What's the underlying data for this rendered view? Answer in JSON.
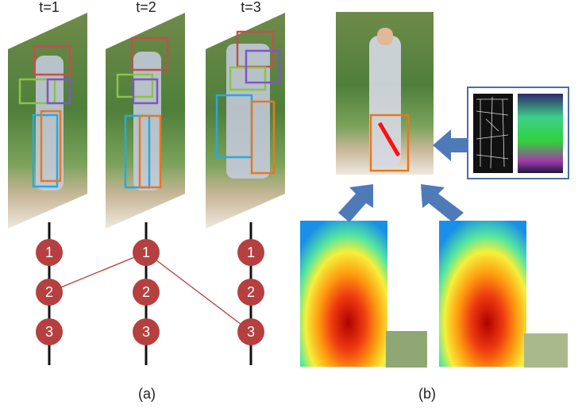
{
  "columns": [
    {
      "label": "t=1",
      "nodes": [
        "1",
        "2",
        "3"
      ]
    },
    {
      "label": "t=2",
      "nodes": [
        "1",
        "2",
        "3"
      ]
    },
    {
      "label": "t=3",
      "nodes": [
        "1",
        "2",
        "3"
      ]
    }
  ],
  "captions": [
    "(a)",
    "(b)"
  ]
}
